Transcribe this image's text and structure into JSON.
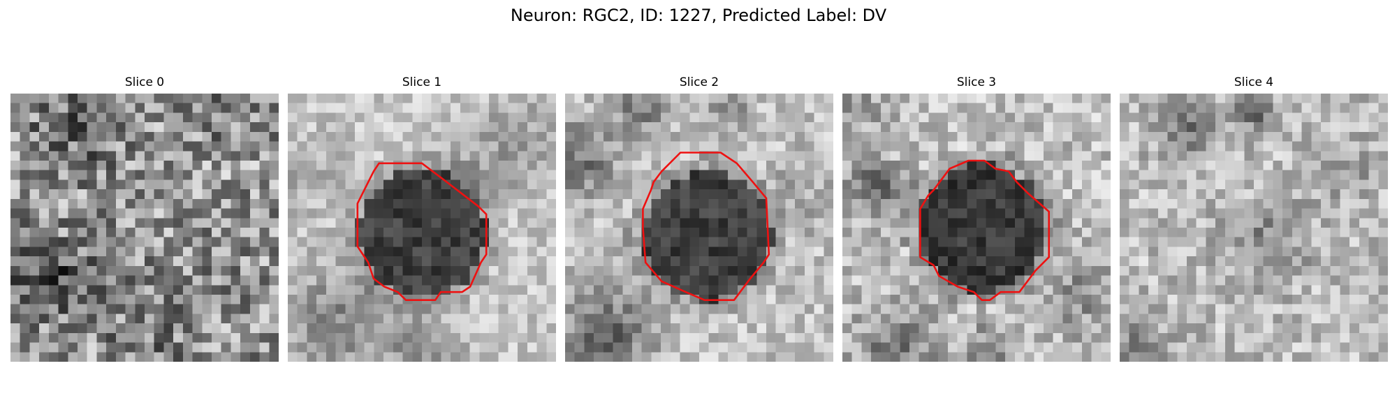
{
  "figure": {
    "title": "Neuron: RGC2, ID: 1227, Predicted Label: DV"
  },
  "panels": [
    {
      "title": "Slice 0",
      "has_outline": false
    },
    {
      "title": "Slice 1",
      "has_outline": true
    },
    {
      "title": "Slice 2",
      "has_outline": true
    },
    {
      "title": "Slice 3",
      "has_outline": true
    },
    {
      "title": "Slice 4",
      "has_outline": false
    }
  ],
  "colors": {
    "outline": "#ee1111",
    "background": "#ffffff"
  }
}
